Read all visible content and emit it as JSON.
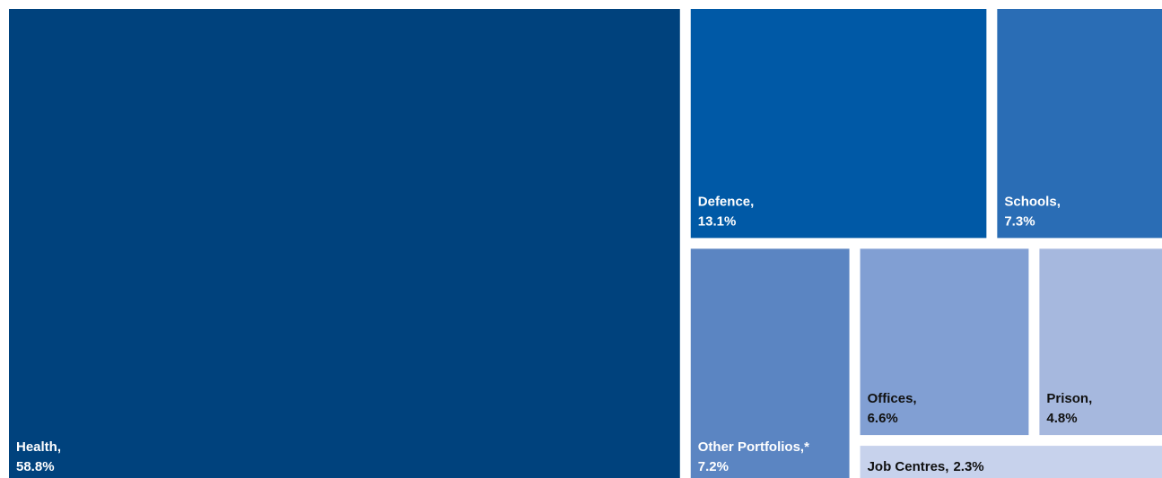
{
  "chart_data": {
    "type": "treemap",
    "categories": [
      "Health,",
      "Defence,",
      "Schools,",
      "Other Portfolios,*",
      "Offices,",
      "Prison,",
      "Job Centres,"
    ],
    "values": [
      58.8,
      13.1,
      7.3,
      7.2,
      6.6,
      4.8,
      2.3
    ],
    "value_labels": [
      "58.8%",
      "13.1%",
      "7.3%",
      "7.2%",
      "6.6%",
      "4.8%",
      "2.3%"
    ],
    "colors": [
      "#00427d",
      "#0059a6",
      "#2a6db5",
      "#5b85c2",
      "#819fd3",
      "#a6b8de",
      "#c7d2ec"
    ]
  }
}
